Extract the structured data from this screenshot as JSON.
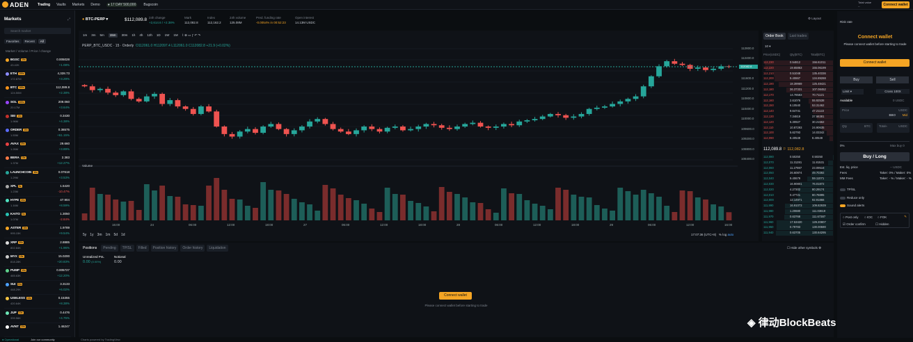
{
  "nav": {
    "brand": "ADEN",
    "links": [
      "Trading",
      "Vaults",
      "Markets",
      "Demo"
    ],
    "active": "Trading",
    "points": "17 DAY 500,000",
    "bugscoin": "Bugscoin",
    "total_value_label": "Total value",
    "total_value": "--",
    "connect_label": "Connect wallet"
  },
  "markets": {
    "title": "Markets",
    "search_placeholder": "Search market",
    "filters": [
      "Favorites",
      "Recent",
      "All"
    ],
    "active_filter": "All",
    "col_header": "Market / Volume",
    "col_header_right": "Price / change",
    "rows": [
      {
        "sym": "BGSC",
        "lev": "10x",
        "vol": "43.42K",
        "price": "0.005028",
        "chg": "+1.08%",
        "up": true,
        "color": "#f5a524"
      },
      {
        "sym": "ETH",
        "lev": "100x",
        "vol": "172.87M",
        "price": "4,328.73",
        "chg": "+3.29%",
        "up": true,
        "color": "#8c8cff"
      },
      {
        "sym": "BTC",
        "lev": "100x",
        "vol": "124.50M",
        "price": "112,089.8",
        "chg": "+2.38%",
        "up": true,
        "color": "#f7931a"
      },
      {
        "sym": "SOL",
        "lev": "100x",
        "vol": "20.17M",
        "price": "209.060",
        "chg": "+3.64%",
        "up": true,
        "color": "#9945ff"
      },
      {
        "sym": "SEI",
        "lev": "10x",
        "vol": "1.96M",
        "price": "0.3430",
        "chg": "+4.38%",
        "up": true,
        "color": "#c4302b"
      },
      {
        "sym": "ORDER",
        "lev": "10x",
        "vol": "1.53M",
        "price": "0.36575",
        "chg": "+61.15%",
        "up": true,
        "color": "#5b6cff"
      },
      {
        "sym": "AVAX",
        "lev": "20x",
        "vol": "1.26M",
        "price": "29.660",
        "chg": "+3.89%",
        "up": true,
        "color": "#e84142"
      },
      {
        "sym": "BERA",
        "lev": "10x",
        "vol": "1.37M",
        "price": "2.383",
        "chg": "+12.27%",
        "up": true,
        "color": "#ff7a45"
      },
      {
        "sym": "LAUNCHCOIN",
        "lev": "10x",
        "vol": "1.29M",
        "price": "0.07618",
        "chg": "+3.53%",
        "up": true,
        "color": "#26a69a"
      },
      {
        "sym": "XPL",
        "lev": "5x",
        "vol": "1.23M",
        "price": "1.5420",
        "chg": "-10.47%",
        "up": false,
        "color": "#aaaaaa"
      },
      {
        "sym": "HYPE",
        "lev": "20x",
        "vol": "1.16M",
        "price": "47.904",
        "chg": "+8.59%",
        "up": true,
        "color": "#50e3c2"
      },
      {
        "sym": "KAITO",
        "lev": "5x",
        "vol": "1.07M",
        "price": "1.3050",
        "chg": "-2.84%",
        "up": false,
        "color": "#28c3b4"
      },
      {
        "sym": "ASTER",
        "lev": "10x",
        "vol": "995.15K",
        "price": "1.9789",
        "chg": "+9.54%",
        "up": true,
        "color": "#f5a524"
      },
      {
        "sym": "XRP",
        "lev": "20x",
        "vol": "802.84K",
        "price": "2.8885",
        "chg": "+1.96%",
        "up": true,
        "color": "#dddddd"
      },
      {
        "sym": "MYX",
        "lev": "10x",
        "vol": "818.28K",
        "price": "15.0200",
        "chg": "+20.83%",
        "up": true,
        "color": "#cccccc"
      },
      {
        "sym": "PUMP",
        "lev": "10x",
        "vol": "465.63K",
        "price": "0.005727",
        "chg": "+12.20%",
        "up": true,
        "color": "#5fd38d"
      },
      {
        "sym": "SUI",
        "lev": "20x",
        "vol": "448.29K",
        "price": "3.3133",
        "chg": "+6.02%",
        "up": true,
        "color": "#4da2ff"
      },
      {
        "sym": "USELESS",
        "lev": "10x",
        "vol": "420.64K",
        "price": "0.15355",
        "chg": "+8.38%",
        "up": true,
        "color": "#f5c542"
      },
      {
        "sym": "JUP",
        "lev": "10x",
        "vol": "339.56K",
        "price": "0.4476",
        "chg": "+4.75%",
        "up": true,
        "color": "#6ee7b7"
      },
      {
        "sym": "AVNT",
        "lev": "10x",
        "vol": "",
        "price": "1.46247",
        "chg": "",
        "up": true,
        "color": "#ffffff"
      }
    ]
  },
  "header": {
    "symbol": "BTC-PERP",
    "price": "$112,089.8",
    "stats": [
      {
        "label": "24h change",
        "value": "+2,614.6 / +2.38%",
        "cls": "grn"
      },
      {
        "label": "Mark",
        "value": "112,082.8",
        "cls": ""
      },
      {
        "label": "Index",
        "value": "112,162.2",
        "cls": ""
      },
      {
        "label": "24h volume",
        "value": "125.08M",
        "cls": ""
      },
      {
        "label": "Pred. funding rate",
        "value": "-0.0054% in 00:52:23",
        "cls": "org"
      },
      {
        "label": "Open interest",
        "value": "14.13M USDC",
        "cls": ""
      }
    ],
    "layout_label": "Layout"
  },
  "chart": {
    "timeframes": [
      "1m",
      "3m",
      "5m",
      "15m",
      "30m",
      "1h",
      "4h",
      "12h",
      "1D",
      "1W",
      "1M"
    ],
    "active_tf": "15m",
    "ptitle": "PERP_BTC_USDC · 15 · Orderly",
    "ohlc": "O112061.0 H112097.4 L112061.0 C112082.8 +21.9 (+0.02%)",
    "yticks": [
      "112800.0",
      "112400.0",
      "111600.0",
      "111200.0",
      "110800.0",
      "110400.0",
      "110000.0",
      "109600.0",
      "109200.0",
      "108800.0",
      "108400.0"
    ],
    "last_price": "112082.8",
    "volume_label": "Volume",
    "xticks": [
      "16:00",
      "24",
      "06:00",
      "12:00",
      "18:00",
      "27",
      "06:00",
      "12:00",
      "18:00",
      "28",
      "06:00",
      "12:00",
      "18:00",
      "29",
      "06:00",
      "12:00",
      "16:00"
    ],
    "ranges": [
      "5y",
      "1y",
      "3m",
      "1m",
      "5d",
      "1d"
    ],
    "time": "17:07:36 (UTC+8)",
    "opts": [
      "%",
      "log",
      "auto"
    ]
  },
  "chart_data": {
    "type": "candlestick",
    "title": "PERP_BTC_USDC · 15 · Orderly",
    "ylim": [
      108400,
      112800
    ],
    "close": [
      111300,
      111150,
      111200,
      111050,
      110950,
      111100,
      110800,
      110700,
      110900,
      111000,
      110600,
      110750,
      110500,
      110400,
      110200,
      110500,
      110300,
      109700,
      109400,
      109300,
      109500,
      109600,
      109450,
      109700,
      109800,
      109600,
      109400,
      109550,
      109700,
      109900,
      110000,
      109800,
      109600,
      109500,
      109400,
      109550,
      109700,
      109600,
      109500,
      109650,
      109700,
      109550,
      109600,
      109700,
      109800,
      109750,
      109650,
      109600,
      109700,
      109800,
      109850,
      109700,
      109650,
      109700,
      109800,
      109750,
      109900,
      109950,
      110000,
      110100,
      110200,
      110150,
      110050,
      110100,
      110200,
      110400,
      110450,
      110500,
      110600,
      110700,
      110800,
      110900,
      111300,
      111700,
      112100,
      112300,
      112200,
      112150,
      112000,
      112050,
      111950,
      112000,
      112100,
      112082
    ]
  },
  "orderbook": {
    "tabs": [
      "Order Book",
      "Last trades"
    ],
    "depth": "10",
    "headers": [
      "Price(USDC)",
      "Qty(BTC)",
      "Total(BTC)"
    ],
    "asks": [
      [
        "112,230",
        "0.54812",
        "156.61011"
      ],
      [
        "112,220",
        "19.65863",
        "155.06199"
      ],
      [
        "112,210",
        "0.51048",
        "135.40336"
      ],
      [
        "112,200",
        "9.40867",
        "134.89288"
      ],
      [
        "112,190",
        "18.39969",
        "125.48421"
      ],
      [
        "112,180",
        "36.37331",
        "107.08452"
      ],
      [
        "112,170",
        "14.78583",
        "70.71121"
      ],
      [
        "112,160",
        "2.61076",
        "55.92538"
      ],
      [
        "112,150",
        "6.10540",
        "53.31462"
      ],
      [
        "112,140",
        "9.64741",
        "47.21122"
      ],
      [
        "112,130",
        "7.34819",
        "37.56381"
      ],
      [
        "112,120",
        "5.30927",
        "30.21562"
      ],
      [
        "112,110",
        "10.87293",
        "24.90635"
      ],
      [
        "112,100",
        "5.62793",
        "14.03342"
      ],
      [
        "112,090",
        "8.40549",
        "8.40549"
      ]
    ],
    "mid_price": "112,089.8",
    "mid_mark": "112,082.8",
    "bids": [
      [
        "112,080",
        "0.50250",
        "0.50250"
      ],
      [
        "112,070",
        "11.31281",
        "11.81531"
      ],
      [
        "112,060",
        "11.27987",
        "23.09518"
      ],
      [
        "112,050",
        "26.60874",
        "49.70392"
      ],
      [
        "112,040",
        "9.40679",
        "59.11071"
      ],
      [
        "112,030",
        "16.90801",
        "76.01872"
      ],
      [
        "112,020",
        "4.27302",
        "80.29174"
      ],
      [
        "112,010",
        "0.47721",
        "80.76895"
      ],
      [
        "112,000",
        "12.14971",
        "92.91866"
      ],
      [
        "111,990",
        "16.91073",
        "109.82939"
      ],
      [
        "111,980",
        "1.20680",
        "111.03619"
      ],
      [
        "111,970",
        "0.63768",
        "111.67387"
      ],
      [
        "111,960",
        "17.53420",
        "129.20807"
      ],
      [
        "111,950",
        "0.79783",
        "130.00590"
      ],
      [
        "111,940",
        "0.63705",
        "130.64295"
      ]
    ]
  },
  "trade": {
    "risk_label": "Risk rate",
    "cw_title": "Connect wallet",
    "cw_sub": "Please connect wallet before starting to trade",
    "cw_btn": "Connect wallet",
    "buy": "Buy",
    "sell": "Sell",
    "order_type": "Limit",
    "cross": "Cross 100X",
    "avail_label": "Available",
    "avail_val": "0 USDC",
    "price_label": "Price",
    "price_unit": "USDC",
    "bbo": "BBO",
    "mid": "Mid",
    "qty_label": "Qty",
    "qty_unit": "BTC",
    "total_label": "Total≈",
    "total_unit": "USDC",
    "pct": "0%",
    "maxbuy": "Max buy 0",
    "buylong": "Buy / Long",
    "est_liq": "Est. liq. price",
    "est_liq_val": "-- USDC",
    "fees": "Fees",
    "fees_val": "Taker: 0% / Maker: 0%",
    "mm_fees": "MM Fees",
    "mm_val": "Taker: - % / Maker: - %",
    "tpsl": "TP/SL",
    "reduce": "Reduce only",
    "sound": "Sound alerts",
    "post": "Post only",
    "ioc": "IOC",
    "fok": "FOK",
    "confirm": "Order confirm",
    "hidden": "Hidden"
  },
  "positions": {
    "tabs": [
      "Positions",
      "Pending",
      "TP/SL",
      "Filled",
      "Position history",
      "Order history",
      "Liquidation"
    ],
    "active": "Positions",
    "unreal_label": "Unrealized PnL",
    "unreal_val": "0.00",
    "unreal_pct": "(0.00%)",
    "notional_label": "Notional",
    "notional_val": "0.00",
    "hide_other": "Hide other symbols",
    "cw_btn": "Connect wallet",
    "msg": "Please connect wallet before starting to trade"
  },
  "footer": {
    "status": "Operational",
    "community": "Join our community",
    "powered": "Charts powered by TradingView"
  },
  "watermark": "律动BlockBeats"
}
